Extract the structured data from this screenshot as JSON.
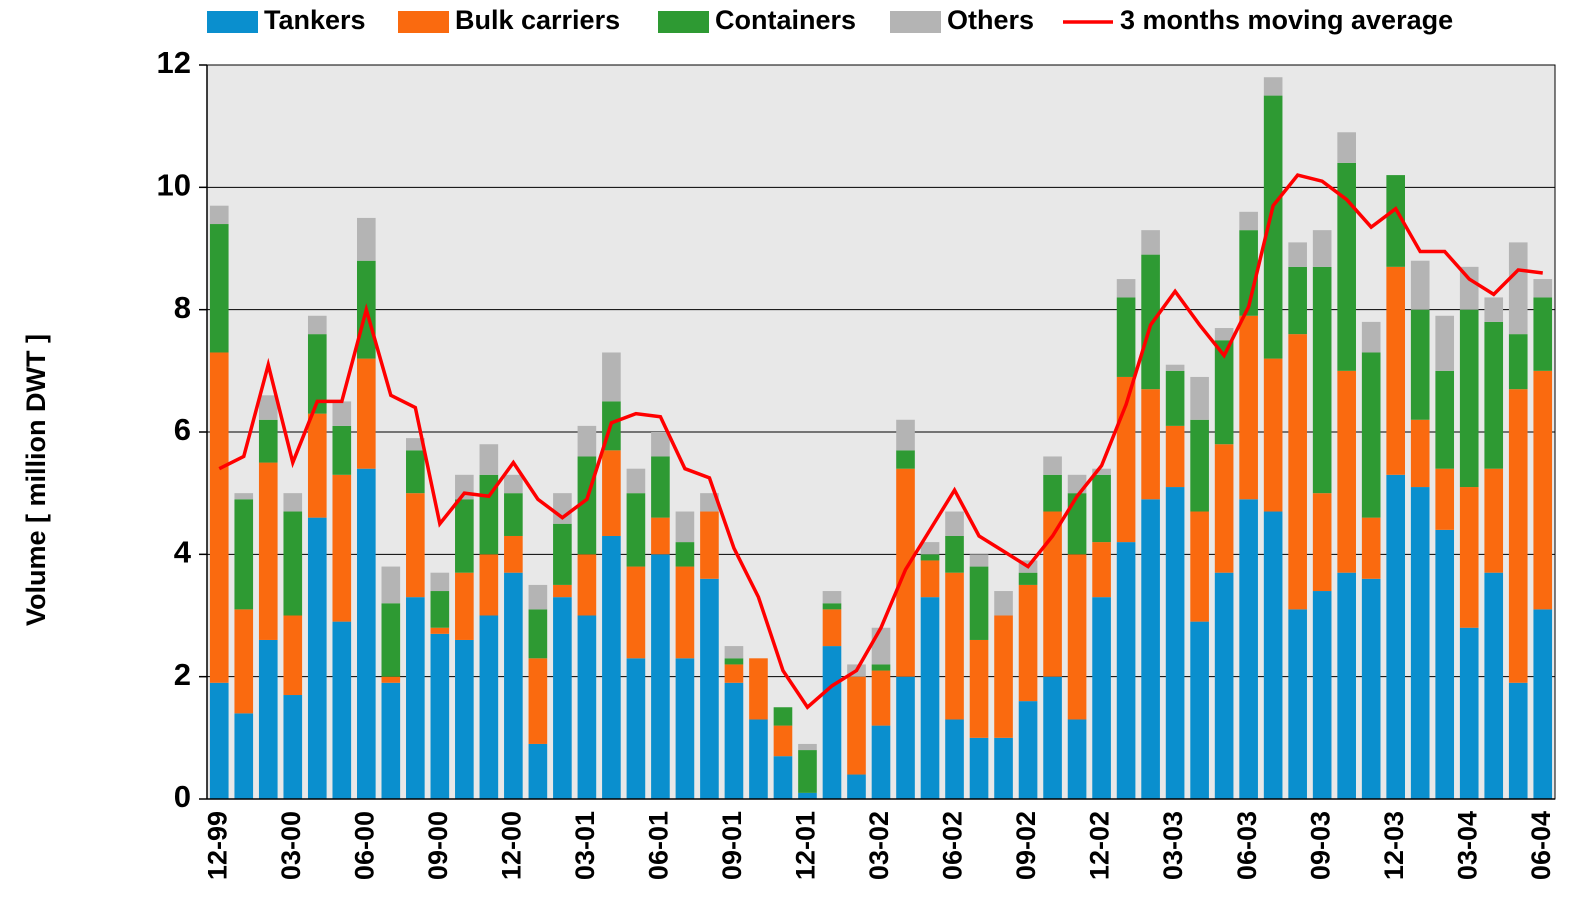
{
  "chart_data": {
    "type": "bar",
    "stacked": true,
    "y_label": "Volume [ million DWT ]",
    "categories": [
      "12-99",
      null,
      null,
      "03-00",
      null,
      null,
      "06-00",
      null,
      null,
      "09-00",
      null,
      null,
      "12-00",
      null,
      null,
      "03-01",
      null,
      null,
      "06-01",
      null,
      null,
      "09-01",
      null,
      null,
      "12-01",
      null,
      null,
      "03-02",
      null,
      null,
      "06-02",
      null,
      null,
      "09-02",
      null,
      null,
      "12-02",
      null,
      null,
      "03-03",
      null,
      null,
      "06-03",
      null,
      null,
      "09-03",
      null,
      null,
      "12-03",
      null,
      null,
      "03-04",
      null,
      null,
      "06-04"
    ],
    "series": [
      {
        "name": "Tankers",
        "color": "#0a8fce",
        "values": [
          1.9,
          1.4,
          2.6,
          1.7,
          4.6,
          2.9,
          5.4,
          1.9,
          3.3,
          2.7,
          2.6,
          3.0,
          3.7,
          0.9,
          3.3,
          3.0,
          4.3,
          2.3,
          4.0,
          2.3,
          3.6,
          1.9,
          1.3,
          0.7,
          0.1,
          2.5,
          0.4,
          1.2,
          2.0,
          3.3,
          1.3,
          1.0,
          1.0,
          1.6,
          2.0,
          1.3,
          3.3,
          4.2,
          4.9,
          5.1,
          2.9,
          3.7,
          4.9,
          4.7,
          3.1,
          3.4,
          3.7,
          3.6,
          5.3,
          5.1,
          4.4,
          2.8,
          3.7,
          1.9,
          3.1
        ]
      },
      {
        "name": "Bulk carriers",
        "color": "#fa6a0f",
        "values": [
          5.4,
          1.7,
          2.9,
          1.3,
          1.7,
          2.4,
          1.8,
          0.1,
          1.7,
          0.1,
          1.1,
          1.0,
          0.6,
          1.4,
          0.2,
          1.0,
          1.4,
          1.5,
          0.6,
          1.5,
          1.1,
          0.3,
          1.0,
          0.5,
          0,
          0.6,
          1.6,
          0.9,
          3.4,
          0.6,
          2.4,
          1.6,
          2.0,
          1.9,
          2.7,
          2.7,
          0.9,
          2.7,
          1.8,
          1.0,
          1.8,
          2.1,
          3.0,
          2.5,
          4.5,
          1.6,
          3.3,
          1.0,
          3.4,
          1.1,
          1.0,
          2.3,
          1.7,
          4.8,
          3.9
        ]
      },
      {
        "name": "Containers",
        "color": "#2e9a33",
        "values": [
          2.1,
          1.8,
          0.7,
          1.7,
          1.3,
          0.8,
          1.6,
          1.2,
          0.7,
          0.6,
          1.2,
          1.3,
          0.7,
          0.8,
          1.0,
          1.6,
          0.8,
          1.2,
          1.0,
          0.4,
          0,
          0.1,
          0,
          0.3,
          0.7,
          0.1,
          0,
          0.1,
          0.3,
          0.1,
          0.6,
          1.2,
          0,
          0.2,
          0.6,
          1.0,
          1.1,
          1.3,
          2.2,
          0.9,
          1.5,
          1.7,
          1.4,
          4.3,
          1.1,
          3.7,
          3.4,
          2.7,
          1.5,
          1.8,
          1.6,
          2.9,
          2.4,
          0.9,
          1.2
        ]
      },
      {
        "name": "Others",
        "color": "#b4b4b4",
        "values": [
          0.3,
          0.1,
          0.4,
          0.3,
          0.3,
          0.4,
          0.7,
          0.6,
          0.2,
          0.3,
          0.4,
          0.5,
          0.3,
          0.4,
          0.5,
          0.5,
          0.8,
          0.4,
          0.4,
          0.5,
          0.3,
          0.2,
          0,
          0,
          0.1,
          0.2,
          0.2,
          0.6,
          0.5,
          0.2,
          0.4,
          0.2,
          0.4,
          0.2,
          0.3,
          0.3,
          0.1,
          0.3,
          0.4,
          0.1,
          0.7,
          0.2,
          0.3,
          0.3,
          0.4,
          0.6,
          0.5,
          0.5,
          0,
          0.8,
          0.9,
          0.7,
          0.4,
          1.5,
          0.3
        ]
      },
      {
        "name": "3 months moving average",
        "type": "line",
        "color": "#ff0000",
        "values": [
          5.4,
          5.6,
          7.1,
          5.5,
          6.5,
          6.5,
          8.0,
          6.6,
          6.4,
          4.5,
          5.0,
          4.95,
          5.5,
          4.9,
          4.6,
          4.9,
          6.15,
          6.3,
          6.25,
          5.4,
          5.25,
          4.1,
          3.3,
          2.1,
          1.5,
          1.85,
          2.1,
          2.8,
          3.75,
          4.4,
          5.05,
          4.3,
          4.05,
          3.8,
          4.3,
          4.95,
          5.45,
          6.45,
          7.75,
          8.3,
          7.75,
          7.25,
          8.05,
          9.7,
          10.2,
          10.1,
          9.8,
          9.35,
          9.65,
          8.95,
          8.95,
          8.5,
          8.25,
          8.65,
          8.6
        ]
      }
    ],
    "ylim": [
      0,
      12
    ],
    "yticks": [
      0,
      2,
      4,
      6,
      8,
      10,
      12
    ],
    "grid": true,
    "legend": "top",
    "plot_background": "#e8e8e8"
  }
}
